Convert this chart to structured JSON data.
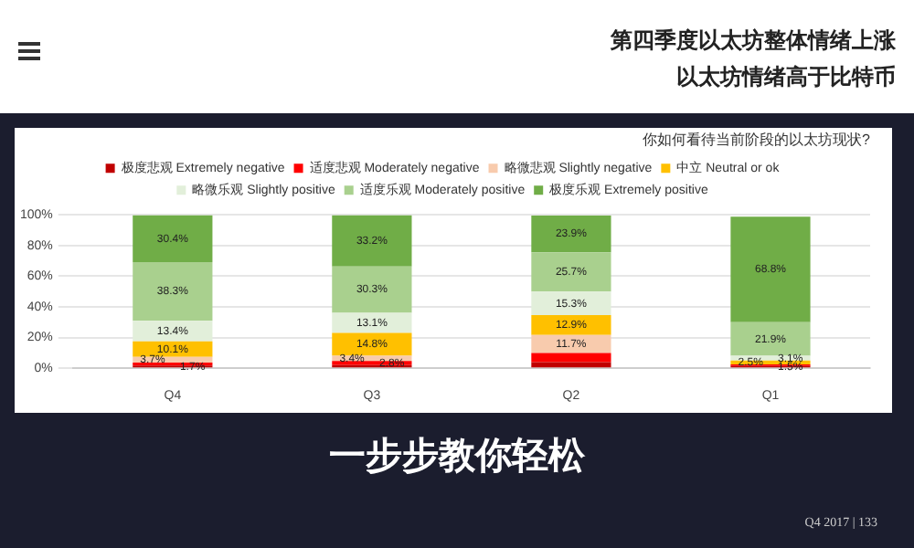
{
  "chart_data": {
    "type": "bar",
    "stacked": true,
    "title": "你如何看待当前阶段的以太坊现状?",
    "subtitle": "第四季度以太坊整体情绪上涨",
    "annotations": [
      "以太坊情绪高于比特币",
      "一步步教你轻松",
      "Q4 2017 | 133"
    ],
    "categories": [
      "Q4",
      "Q3",
      "Q2",
      "Q1"
    ],
    "series": [
      {
        "name": "极度悲观 Extremely negative",
        "color": "#c00000",
        "values": [
          1.7,
          2,
          4,
          1.5
        ],
        "value_labels": [
          "1.7%",
          null,
          null,
          "1.5%"
        ]
      },
      {
        "name": "适度悲观 Moderately negative",
        "color": "#ff0000",
        "values": [
          2,
          2.8,
          6,
          1
        ],
        "value_labels": [
          null,
          "2.8%",
          null,
          null
        ]
      },
      {
        "name": "略微悲观 Slightly negative",
        "color": "#f8cbad",
        "values": [
          3.7,
          3.4,
          11.7,
          null
        ],
        "value_labels": [
          "3.7%",
          "3.4%",
          "11.7%",
          null
        ]
      },
      {
        "name": "中立 Neutral or ok",
        "color": "#ffc000",
        "values": [
          10.1,
          14.8,
          12.9,
          2.5
        ],
        "value_labels": [
          "10.1%",
          "14.8%",
          "12.9%",
          "2.5%"
        ]
      },
      {
        "name": "略微乐观 Slightly positive",
        "color": "#e2efda",
        "values": [
          13.4,
          13.1,
          15.3,
          3.1
        ],
        "value_labels": [
          "13.4%",
          "13.1%",
          "15.3%",
          "3.1%"
        ]
      },
      {
        "name": "适度乐观 Moderately positive",
        "color": "#a9d08e",
        "values": [
          38.3,
          30.3,
          25.7,
          21.9
        ],
        "value_labels": [
          "38.3%",
          "30.3%",
          "25.7%",
          "21.9%"
        ]
      },
      {
        "name": "极度乐观 Extremely positive",
        "color": "#70ad47",
        "values": [
          30.4,
          33.2,
          23.9,
          68.8
        ],
        "value_labels": [
          "30.4%",
          "33.2%",
          "23.9%",
          "68.8%"
        ]
      }
    ],
    "ylim": [
      0,
      100
    ],
    "yticks": [
      {
        "value": 0,
        "label": "0%"
      },
      {
        "value": 20,
        "label": "20%"
      },
      {
        "value": 40,
        "label": "40%"
      },
      {
        "value": 60,
        "label": "60%"
      },
      {
        "value": 80,
        "label": "80%"
      },
      {
        "value": 100,
        "label": "100%"
      }
    ],
    "grid": "y",
    "legend": "top"
  }
}
